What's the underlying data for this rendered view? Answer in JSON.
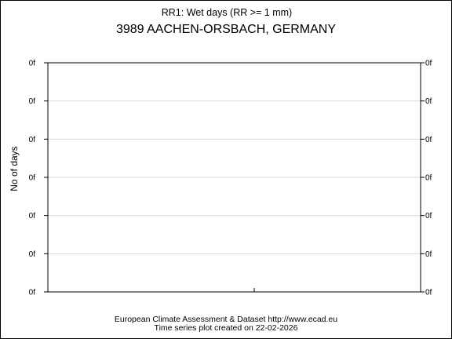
{
  "chart_data": {
    "type": "line",
    "subtitle": "RR1: Wet days (RR >= 1 mm)",
    "title": "3989 AACHEN-ORSBACH, GERMANY",
    "ylabel": "No of days",
    "xlabel": "",
    "y_tick_labels": [
      "0f",
      "0f",
      "0f",
      "0f",
      "0f",
      "0f",
      "0f"
    ],
    "series": [],
    "grid": "horizontal"
  },
  "footer": {
    "line1": "European Climate Assessment & Dataset  http://www.ecad.eu",
    "line2": "Time series plot created on 22-02-2026"
  }
}
